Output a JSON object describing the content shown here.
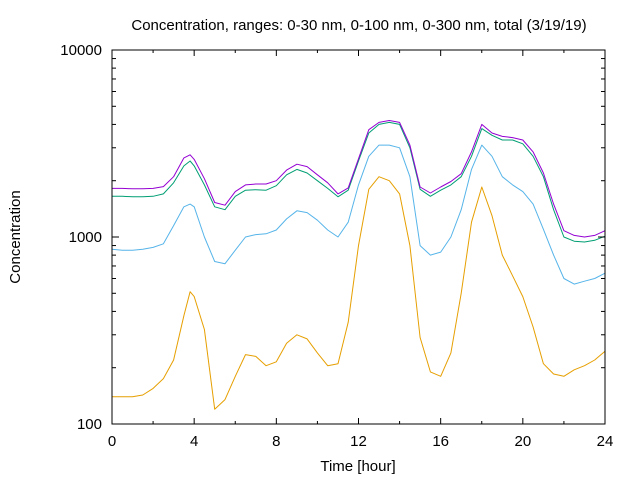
{
  "chart_data": {
    "type": "line",
    "title": "Concentration, ranges: 0-30 nm, 0-100 nm, 0-300 nm, total (3/19/19)",
    "xlabel": "Time [hour]",
    "ylabel": "Concentration",
    "xlim": [
      0,
      24
    ],
    "ylim": [
      100,
      10000
    ],
    "yscale": "log",
    "grid": false,
    "legend": "none",
    "x_ticks": [
      "0",
      "4",
      "8",
      "12",
      "16",
      "20",
      "24"
    ],
    "y_ticks": [
      "100",
      "1000",
      "10000"
    ],
    "x": [
      0,
      0.5,
      1,
      1.5,
      2,
      2.5,
      3,
      3.5,
      3.8,
      4,
      4.5,
      5,
      5.5,
      6,
      6.5,
      7,
      7.5,
      8,
      8.5,
      9,
      9.5,
      10,
      10.5,
      11,
      11.5,
      12,
      12.5,
      13,
      13.5,
      14,
      14.5,
      15,
      15.5,
      16,
      16.5,
      17,
      17.5,
      18,
      18.5,
      19,
      19.5,
      20,
      20.5,
      21,
      21.5,
      22,
      22.5,
      23,
      23.5,
      24
    ],
    "series": [
      {
        "color": "#e69f00",
        "values": [
          140,
          140,
          140,
          143,
          155,
          175,
          220,
          380,
          510,
          480,
          320,
          120,
          135,
          180,
          235,
          230,
          205,
          215,
          270,
          300,
          285,
          240,
          205,
          210,
          350,
          900,
          1800,
          2100,
          2000,
          1700,
          900,
          290,
          190,
          180,
          240,
          500,
          1200,
          1850,
          1300,
          800,
          620,
          480,
          330,
          210,
          185,
          180,
          195,
          205,
          220,
          245
        ]
      },
      {
        "color": "#56b4e9",
        "values": [
          860,
          850,
          850,
          860,
          880,
          920,
          1150,
          1450,
          1500,
          1450,
          1000,
          740,
          720,
          850,
          1000,
          1030,
          1040,
          1090,
          1250,
          1380,
          1350,
          1230,
          1090,
          1000,
          1200,
          1900,
          2700,
          3100,
          3100,
          3000,
          2100,
          900,
          800,
          830,
          1000,
          1400,
          2300,
          3100,
          2700,
          2100,
          1900,
          1750,
          1500,
          1100,
          800,
          600,
          560,
          580,
          600,
          640
        ]
      },
      {
        "color": "#009e73",
        "values": [
          1650,
          1650,
          1640,
          1640,
          1650,
          1700,
          1950,
          2400,
          2550,
          2400,
          1900,
          1450,
          1400,
          1650,
          1780,
          1790,
          1780,
          1880,
          2150,
          2300,
          2200,
          2000,
          1820,
          1640,
          1780,
          2550,
          3600,
          4000,
          4100,
          4000,
          3000,
          1800,
          1650,
          1780,
          1900,
          2100,
          2700,
          3800,
          3500,
          3300,
          3300,
          3150,
          2700,
          2100,
          1400,
          1000,
          950,
          940,
          960,
          1010
        ]
      },
      {
        "color": "#9400d3",
        "values": [
          1820,
          1820,
          1810,
          1810,
          1820,
          1860,
          2100,
          2650,
          2750,
          2600,
          2050,
          1530,
          1480,
          1750,
          1900,
          1920,
          1920,
          2000,
          2280,
          2450,
          2380,
          2150,
          1950,
          1700,
          1830,
          2620,
          3750,
          4100,
          4200,
          4100,
          3100,
          1850,
          1720,
          1850,
          1980,
          2180,
          2850,
          4000,
          3600,
          3450,
          3400,
          3300,
          2850,
          2200,
          1500,
          1080,
          1020,
          1000,
          1020,
          1080
        ]
      }
    ]
  }
}
